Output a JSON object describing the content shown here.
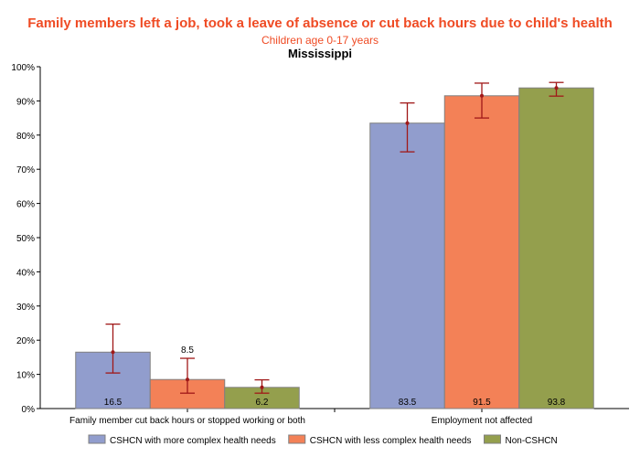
{
  "chart_data": {
    "type": "bar",
    "title": "Family members left a job, took a leave of absence or cut back hours due to child's health",
    "subtitle": "Children age 0-17 years",
    "subtitle2": "Mississippi",
    "xlabel": "",
    "ylabel": "",
    "ylim": [
      0,
      100
    ],
    "yticks": [
      "0%",
      "10%",
      "20%",
      "30%",
      "40%",
      "50%",
      "60%",
      "70%",
      "80%",
      "90%",
      "100%"
    ],
    "grid": false,
    "legend_position": "bottom",
    "categories": [
      "Family member cut back hours or stopped working or both",
      "Employment not affected"
    ],
    "series": [
      {
        "name": "CSHCN with more complex health needs",
        "color": "#919dcd",
        "values": [
          16.5,
          83.5
        ],
        "ci_low": [
          10.4,
          75.1
        ],
        "ci_high": [
          24.7,
          89.4
        ],
        "labels": [
          "16.5",
          "83.5"
        ]
      },
      {
        "name": "CSHCN with less complex health needs",
        "color": "#f38157",
        "values": [
          8.5,
          91.5
        ],
        "ci_low": [
          4.5,
          85.0
        ],
        "ci_high": [
          14.7,
          95.2
        ],
        "labels": [
          "8.5",
          "91.5"
        ]
      },
      {
        "name": "Non-CSHCN",
        "color": "#949f4d",
        "values": [
          6.2,
          93.8
        ],
        "ci_low": [
          4.5,
          91.4
        ],
        "ci_high": [
          8.4,
          95.4
        ],
        "labels": [
          "6.2",
          "93.8"
        ]
      }
    ],
    "error_bar_color": "#a01818"
  }
}
